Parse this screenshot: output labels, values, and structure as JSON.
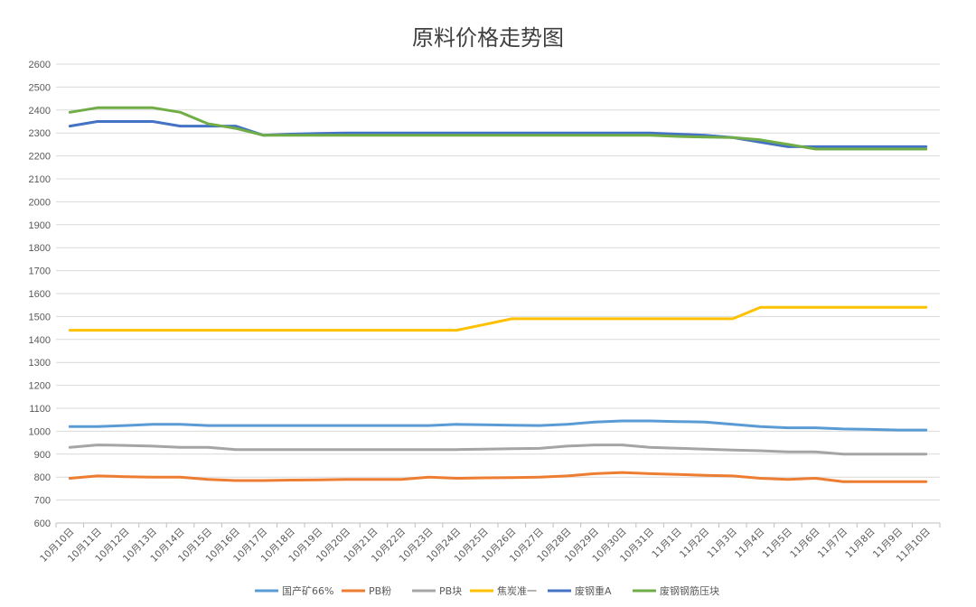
{
  "chart_data": {
    "type": "line",
    "title": "原料价格走势图",
    "xlabel": "",
    "ylabel": "",
    "ylim": [
      600,
      2600
    ],
    "ytick_step": 100,
    "grid": true,
    "legend_position": "bottom",
    "categories": [
      "10月10日",
      "10月11日",
      "10月12日",
      "10月13日",
      "10月14日",
      "10月15日",
      "10月16日",
      "10月17日",
      "10月18日",
      "10月19日",
      "10月20日",
      "10月21日",
      "10月22日",
      "10月23日",
      "10月24日",
      "10月25日",
      "10月26日",
      "10月27日",
      "10月28日",
      "10月29日",
      "10月30日",
      "10月31日",
      "11月1日",
      "11月2日",
      "11月3日",
      "11月4日",
      "11月5日",
      "11月6日",
      "11月7日",
      "11月8日",
      "11月9日",
      "11月10日"
    ],
    "series": [
      {
        "name": "国产矿66%",
        "color": "#5B9BD5",
        "values": [
          1020,
          1020,
          1025,
          1030,
          1030,
          1025,
          1025,
          1025,
          1025,
          1025,
          1025,
          1025,
          1025,
          1025,
          1030,
          1028,
          1026,
          1025,
          1030,
          1040,
          1045,
          1045,
          1042,
          1040,
          1030,
          1020,
          1015,
          1015,
          1010,
          1008,
          1005,
          1005
        ]
      },
      {
        "name": "PB粉",
        "color": "#ED7D31",
        "values": [
          795,
          805,
          802,
          800,
          800,
          790,
          785,
          785,
          787,
          788,
          790,
          790,
          790,
          800,
          795,
          797,
          798,
          800,
          805,
          815,
          820,
          815,
          812,
          808,
          805,
          795,
          790,
          795,
          780,
          780,
          780,
          780
        ]
      },
      {
        "name": "PB块",
        "color": "#A5A5A5",
        "values": [
          930,
          940,
          938,
          935,
          930,
          930,
          920,
          920,
          920,
          920,
          920,
          920,
          920,
          920,
          920,
          922,
          924,
          925,
          935,
          940,
          940,
          930,
          926,
          922,
          918,
          915,
          910,
          910,
          900,
          900,
          900,
          900
        ]
      },
      {
        "name": "焦炭准一",
        "color": "#FFC000",
        "values": [
          1440,
          1440,
          1440,
          1440,
          1440,
          1440,
          1440,
          1440,
          1440,
          1440,
          1440,
          1440,
          1440,
          1440,
          1440,
          1465,
          1490,
          1490,
          1490,
          1490,
          1490,
          1490,
          1490,
          1490,
          1490,
          1540,
          1540,
          1540,
          1540,
          1540,
          1540,
          1540
        ]
      },
      {
        "name": "废钢重A",
        "color": "#4472C4",
        "values": [
          2330,
          2350,
          2350,
          2350,
          2330,
          2330,
          2330,
          2290,
          2295,
          2298,
          2300,
          2300,
          2300,
          2300,
          2300,
          2300,
          2300,
          2300,
          2300,
          2300,
          2300,
          2300,
          2295,
          2290,
          2280,
          2260,
          2240,
          2240,
          2240,
          2240,
          2240,
          2240
        ]
      },
      {
        "name": "废钢钢筋压块",
        "color": "#70AD47",
        "values": [
          2390,
          2410,
          2410,
          2410,
          2390,
          2340,
          2320,
          2290,
          2290,
          2290,
          2290,
          2290,
          2290,
          2290,
          2290,
          2290,
          2290,
          2290,
          2290,
          2290,
          2290,
          2290,
          2285,
          2282,
          2280,
          2270,
          2250,
          2230,
          2230,
          2230,
          2230,
          2230
        ]
      }
    ]
  }
}
